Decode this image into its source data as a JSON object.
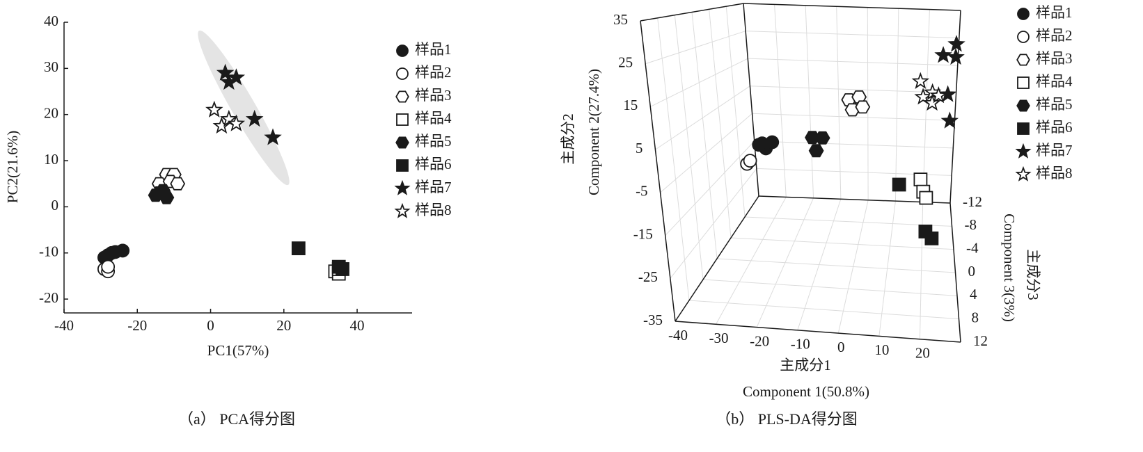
{
  "chart_data": [
    {
      "type": "scatter",
      "caption": "（a） PCA得分图",
      "x_label": "PC1(57%)",
      "y_label": "PC2(21.6%)",
      "xlim": [
        -40,
        55
      ],
      "ylim": [
        -23,
        40
      ],
      "xticks": [
        -40,
        -20,
        0,
        20,
        40
      ],
      "yticks": [
        -20,
        -10,
        0,
        10,
        20,
        30,
        40
      ],
      "legend": "right",
      "series": [
        {
          "name": "样品1",
          "marker": "circle",
          "filled": true,
          "color": "#1a1a1a",
          "x": [
            -29,
            -28,
            -27,
            -26,
            -24
          ],
          "y": [
            -11,
            -10.5,
            -10,
            -9.8,
            -9.5
          ]
        },
        {
          "name": "样品2",
          "marker": "circle",
          "filled": false,
          "color": "#1a1a1a",
          "x": [
            -29,
            -28,
            -28
          ],
          "y": [
            -13.5,
            -14,
            -13
          ]
        },
        {
          "name": "样品3",
          "marker": "hexagon",
          "filled": false,
          "color": "#1a1a1a",
          "x": [
            -12,
            -10,
            -14,
            -11,
            -9
          ],
          "y": [
            7,
            7,
            5,
            5.5,
            5
          ]
        },
        {
          "name": "样品4",
          "marker": "square",
          "filled": false,
          "color": "#1a1a1a",
          "x": [
            34,
            35,
            35
          ],
          "y": [
            -14,
            -14.5,
            -13.5
          ]
        },
        {
          "name": "样品5",
          "marker": "hexagon",
          "filled": true,
          "color": "#1a1a1a",
          "x": [
            -15,
            -13,
            -12,
            -14
          ],
          "y": [
            2.5,
            3.5,
            2,
            3
          ]
        },
        {
          "name": "样品6",
          "marker": "square",
          "filled": true,
          "color": "#1a1a1a",
          "x": [
            24,
            35,
            36
          ],
          "y": [
            -9,
            -13,
            -13.5
          ]
        },
        {
          "name": "样品7",
          "marker": "star",
          "filled": true,
          "color": "#1a1a1a",
          "x": [
            4,
            5,
            7,
            12,
            17
          ],
          "y": [
            29,
            27,
            28,
            19,
            15
          ]
        },
        {
          "name": "样品8",
          "marker": "star",
          "filled": false,
          "color": "#1a1a1a",
          "x": [
            1,
            3,
            5,
            7
          ],
          "y": [
            21,
            17.5,
            19,
            18
          ]
        }
      ]
    },
    {
      "type": "scatter3d",
      "caption": "（b） PLS-DA得分图",
      "x_label": "主成分1",
      "x_label_en": "Component 1(50.8%)",
      "y_label": "主成分2",
      "y_label_en": "Component 2(27.4%)",
      "z_label": "主成分3",
      "z_label_en": "Component 3(3%)",
      "xlim": [
        -40,
        30
      ],
      "ylim": [
        -35,
        35
      ],
      "zlim": [
        -12,
        12
      ],
      "xticks": [
        -40,
        -30,
        -20,
        -10,
        0,
        10,
        20
      ],
      "yticks": [
        -35,
        -25,
        -15,
        -5,
        5,
        15,
        25,
        35
      ],
      "zticks": [
        -12,
        -8,
        -4,
        0,
        4,
        8,
        12
      ],
      "grid": true,
      "legend": "right",
      "series": [
        {
          "name": "样品1",
          "marker": "circle",
          "filled": true,
          "color": "#1a1a1a",
          "x": [
            -29,
            -27,
            -25,
            -28
          ],
          "y": [
            -6,
            -7,
            -5,
            -5.5
          ],
          "z": [
            -4,
            -4,
            -4,
            -4
          ]
        },
        {
          "name": "样品2",
          "marker": "circle",
          "filled": false,
          "color": "#1a1a1a",
          "x": [
            -33,
            -32
          ],
          "y": [
            -12,
            -11
          ],
          "z": [
            -4,
            -4
          ]
        },
        {
          "name": "样品3",
          "marker": "hexagon",
          "filled": false,
          "color": "#1a1a1a",
          "x": [
            -2,
            1,
            -1,
            2
          ],
          "y": [
            9,
            10,
            6,
            7
          ],
          "z": [
            -4,
            -4,
            -4,
            -4
          ]
        },
        {
          "name": "样品4",
          "marker": "square",
          "filled": false,
          "color": "#1a1a1a",
          "x": [
            19,
            20,
            21
          ],
          "y": [
            -20,
            -24,
            -26
          ],
          "z": [
            -8,
            -8,
            -8
          ]
        },
        {
          "name": "样品5",
          "marker": "hexagon",
          "filled": true,
          "color": "#1a1a1a",
          "x": [
            -13,
            -10,
            -12
          ],
          "y": [
            -3,
            -3,
            -7
          ],
          "z": [
            -4,
            -4,
            -4
          ]
        },
        {
          "name": "样品6",
          "marker": "square",
          "filled": true,
          "color": "#1a1a1a",
          "x": [
            12,
            21,
            23
          ],
          "y": [
            -22,
            -30,
            -32
          ],
          "z": [
            -8,
            -4,
            -4
          ]
        },
        {
          "name": "样品7",
          "marker": "star",
          "filled": true,
          "color": "#1a1a1a",
          "x": [
            29,
            25,
            29,
            27,
            28
          ],
          "y": [
            24,
            20,
            19.5,
            6.5,
            -2.6
          ],
          "z": [
            -10,
            -10,
            -10,
            -10,
            -10
          ]
        },
        {
          "name": "样品8",
          "marker": "star",
          "filled": false,
          "color": "#1a1a1a",
          "x": [
            18,
            19,
            22,
            22,
            24
          ],
          "y": [
            10.7,
            5.3,
            3.3,
            7,
            6
          ],
          "z": [
            -10,
            -10,
            -10,
            -10,
            -10
          ]
        }
      ]
    }
  ]
}
